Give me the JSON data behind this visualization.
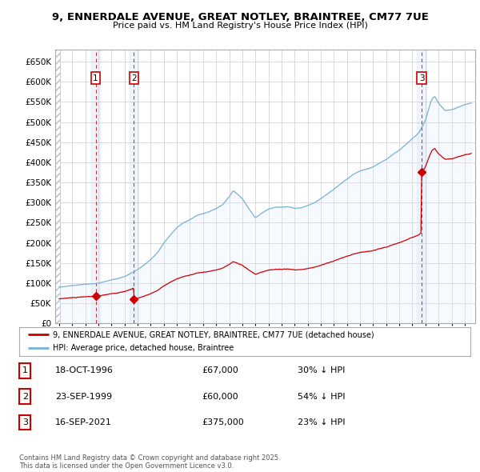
{
  "title": "9, ENNERDALE AVENUE, GREAT NOTLEY, BRAINTREE, CM77 7UE",
  "subtitle": "Price paid vs. HM Land Registry's House Price Index (HPI)",
  "ylim": [
    0,
    680000
  ],
  "yticks": [
    0,
    50000,
    100000,
    150000,
    200000,
    250000,
    300000,
    350000,
    400000,
    450000,
    500000,
    550000,
    600000,
    650000
  ],
  "ytick_labels": [
    "£0",
    "£50K",
    "£100K",
    "£150K",
    "£200K",
    "£250K",
    "£300K",
    "£350K",
    "£400K",
    "£450K",
    "£500K",
    "£550K",
    "£600K",
    "£650K"
  ],
  "xlim_start": 1993.7,
  "xlim_end": 2025.8,
  "transactions": [
    {
      "label": 1,
      "date_num": 1996.79,
      "price": 67000,
      "note": "18-OCT-1996",
      "pct": "30% ↓ HPI"
    },
    {
      "label": 2,
      "date_num": 1999.72,
      "price": 60000,
      "note": "23-SEP-1999",
      "pct": "54% ↓ HPI"
    },
    {
      "label": 3,
      "date_num": 2021.71,
      "price": 375000,
      "note": "16-SEP-2021",
      "pct": "23% ↓ HPI"
    }
  ],
  "property_line_color": "#cc0000",
  "hpi_line_color": "#7ab0d4",
  "hpi_fill_color": "#ddeeff",
  "grid_color": "#cccccc",
  "background_color": "#ffffff",
  "legend_entries": [
    "9, ENNERDALE AVENUE, GREAT NOTLEY, BRAINTREE, CM77 7UE (detached house)",
    "HPI: Average price, detached house, Braintree"
  ],
  "footer_text": "Contains HM Land Registry data © Crown copyright and database right 2025.\nThis data is licensed under the Open Government Licence v3.0.",
  "table_rows": [
    {
      "num": 1,
      "date": "18-OCT-1996",
      "price": "£67,000",
      "pct": "30% ↓ HPI"
    },
    {
      "num": 2,
      "date": "23-SEP-1999",
      "price": "£60,000",
      "pct": "54% ↓ HPI"
    },
    {
      "num": 3,
      "date": "16-SEP-2021",
      "price": "£375,000",
      "pct": "23% ↓ HPI"
    }
  ]
}
